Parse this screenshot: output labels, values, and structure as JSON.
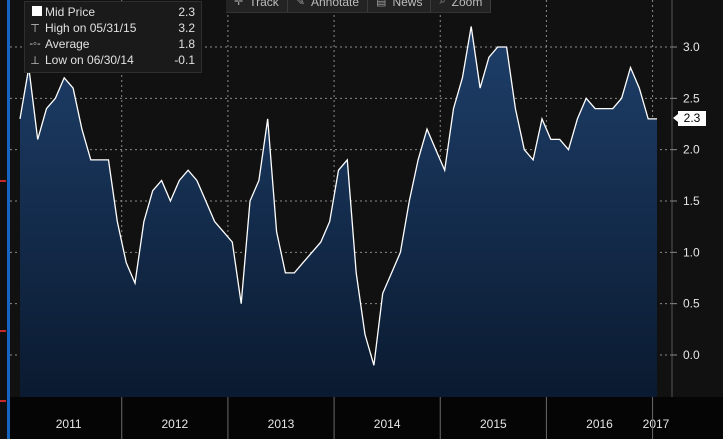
{
  "toolbar": {
    "items": [
      {
        "label": "Track",
        "icon": "crosshair-icon"
      },
      {
        "label": "Annotate",
        "icon": "pencil-icon"
      },
      {
        "label": "News",
        "icon": "news-icon"
      },
      {
        "label": "Zoom",
        "icon": "magnifier-icon"
      }
    ]
  },
  "legend": {
    "rows": [
      {
        "label": "Mid Price",
        "value": "2.3",
        "icon": "series-swatch-icon"
      },
      {
        "label": "High on 05/31/15",
        "value": "3.2",
        "icon": "high-marker-icon"
      },
      {
        "label": "Average",
        "value": "1.8",
        "icon": "average-marker-icon"
      },
      {
        "label": "Low on 06/30/14",
        "value": "-0.1",
        "icon": "low-marker-icon"
      }
    ]
  },
  "last_value_label": "2.3",
  "colors": {
    "background": "#000000",
    "plot_background": "#111111",
    "line": "#ffffff",
    "area_top": "#1e3f6a",
    "area_bottom": "#0a1a30",
    "grid": "#8a8a8a",
    "axis_text": "#e6e6e6",
    "accent_blue": "#1565c0"
  },
  "chart_data": {
    "type": "area",
    "series": [
      {
        "name": "Mid Price",
        "values": [
          2.3,
          2.8,
          2.1,
          2.4,
          2.5,
          2.7,
          2.6,
          2.2,
          1.9,
          1.9,
          1.9,
          1.3,
          0.9,
          0.7,
          1.3,
          1.6,
          1.7,
          1.5,
          1.7,
          1.8,
          1.7,
          1.5,
          1.3,
          1.2,
          1.1,
          0.5,
          1.5,
          1.7,
          2.3,
          1.2,
          0.8,
          0.8,
          0.9,
          1.0,
          1.1,
          1.3,
          1.8,
          1.9,
          0.8,
          0.2,
          -0.1,
          0.6,
          0.8,
          1.0,
          1.5,
          1.9,
          2.2,
          2.0,
          1.8,
          2.4,
          2.7,
          3.2,
          2.6,
          2.9,
          3.0,
          3.0,
          2.4,
          2.0,
          1.9,
          2.3,
          2.1,
          2.1,
          2.0,
          2.3,
          2.5,
          2.4,
          2.4,
          2.4,
          2.5,
          2.8,
          2.6,
          2.3,
          2.3
        ]
      }
    ],
    "x_start": "2011-01",
    "x_interval": "month",
    "x_tick_labels": [
      "2011",
      "2012",
      "2013",
      "2014",
      "2015",
      "2016",
      "2017"
    ],
    "y_ticks": [
      0.0,
      0.5,
      1.0,
      1.5,
      2.0,
      2.5,
      3.0
    ],
    "y_tick_labels": [
      "0.0",
      "0.5",
      "1.0",
      "1.5",
      "2.0",
      "2.5",
      "3.0"
    ],
    "ylim": [
      -0.4,
      3.3
    ],
    "grid": true,
    "legend_position": "top-left"
  }
}
